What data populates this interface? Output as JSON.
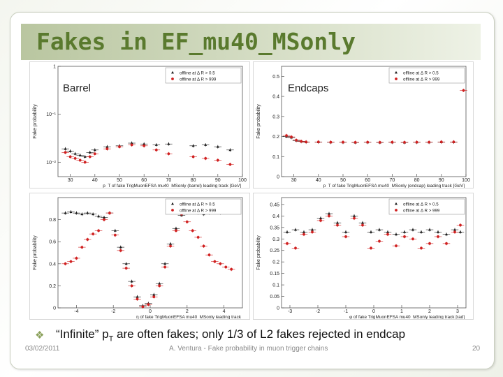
{
  "slide": {
    "title": "Fakes in EF_mu40_MSonly",
    "bullet_pre": "“Infinite” p",
    "bullet_sub": "T",
    "bullet_post": " are often fakes; only 1/3 of L2 fakes rejected in endcap",
    "footer_date": "03/02/2011",
    "footer_author": "A. Ventura - Fake probability in muon trigger chains",
    "page_number": "20"
  },
  "colors": {
    "title": "#5a7a2e",
    "band": "#b9c6a0",
    "series_a": "#1a1a1a",
    "series_b": "#d02020"
  },
  "chart_data": [
    {
      "type": "scatter",
      "panel_label": "Barrel",
      "xlabel": "p_T of fake TrigMuonEFSA mu40_MSonly (barrel) leading track [GeV]",
      "ylabel": "Fake probability",
      "xticks": [
        "30",
        "40",
        "50",
        "60",
        "70",
        "80",
        "90",
        "100"
      ],
      "yticks": [
        "1",
        "10⁻¹",
        "10⁻²"
      ],
      "xlim": [
        25,
        100
      ],
      "ylim": [
        0.005,
        1
      ],
      "ylog": true,
      "legend_position": "top-right",
      "series": [
        {
          "name": "offline at Δ R > 0.5",
          "marker": "triangle",
          "color": "#1a1a1a",
          "x": [
            28,
            30,
            32,
            34,
            36,
            38,
            40,
            45,
            50,
            55,
            60,
            65,
            70,
            80,
            85,
            90,
            95
          ],
          "y": [
            0.019,
            0.017,
            0.015,
            0.014,
            0.013,
            0.016,
            0.018,
            0.021,
            0.022,
            0.025,
            0.024,
            0.023,
            0.024,
            0.022,
            0.023,
            0.021,
            0.018
          ]
        },
        {
          "name": "offline at Δ R > 999",
          "marker": "circle",
          "color": "#d02020",
          "x": [
            28,
            30,
            32,
            34,
            36,
            38,
            40,
            45,
            50,
            55,
            60,
            65,
            70,
            80,
            85,
            90,
            95
          ],
          "y": [
            0.016,
            0.013,
            0.012,
            0.011,
            0.01,
            0.013,
            0.015,
            0.019,
            0.021,
            0.023,
            0.022,
            0.018,
            0.015,
            0.013,
            0.012,
            0.011,
            0.009
          ]
        }
      ]
    },
    {
      "type": "scatter",
      "panel_label": "Endcaps",
      "xlabel": "p_T of fake TrigMuonEFSA mu40_MSonly (endcap) leading track [GeV]",
      "ylabel": "Fake probability",
      "xticks": [
        "30",
        "40",
        "50",
        "60",
        "70",
        "80",
        "90",
        "100"
      ],
      "yticks": [
        "0",
        "0.1",
        "0.2",
        "0.3",
        "0.4",
        "0.5"
      ],
      "xlim": [
        25,
        100
      ],
      "ylim": [
        0,
        0.55
      ],
      "legend_position": "top-right",
      "series": [
        {
          "name": "offline at Δ R > 0.5",
          "marker": "triangle",
          "color": "#1a1a1a",
          "x": [
            27,
            29,
            31,
            33,
            35,
            40,
            45,
            50,
            55,
            60,
            65,
            70,
            75,
            80,
            85,
            90,
            95
          ],
          "y": [
            0.2,
            0.195,
            0.18,
            0.175,
            0.172,
            0.172,
            0.171,
            0.171,
            0.17,
            0.171,
            0.17,
            0.171,
            0.17,
            0.171,
            0.171,
            0.172,
            0.172
          ]
        },
        {
          "name": "offline at Δ R > 999",
          "marker": "circle",
          "color": "#d02020",
          "x": [
            27,
            29,
            31,
            33,
            35,
            40,
            45,
            50,
            55,
            60,
            65,
            70,
            75,
            80,
            85,
            90,
            95,
            99
          ],
          "y": [
            0.205,
            0.198,
            0.182,
            0.176,
            0.173,
            0.173,
            0.172,
            0.172,
            0.171,
            0.172,
            0.171,
            0.172,
            0.171,
            0.172,
            0.172,
            0.173,
            0.173,
            0.43
          ]
        }
      ]
    },
    {
      "type": "scatter",
      "xlabel": "η of fake TrigMuonEFSA mu40_MSonly leading track",
      "ylabel": "Fake probability",
      "xticks": [
        "-4",
        "-2",
        "0",
        "2",
        "4"
      ],
      "yticks": [
        "0",
        "0.2",
        "0.4",
        "0.6",
        "0.8"
      ],
      "xlim": [
        -5,
        5
      ],
      "ylim": [
        0,
        1.0
      ],
      "legend_position": "top-right",
      "series": [
        {
          "name": "offline at Δ R > 0.5",
          "marker": "triangle",
          "color": "#1a1a1a",
          "x": [
            -4.6,
            -4.3,
            -4.0,
            -3.7,
            -3.4,
            -3.1,
            -2.8,
            -2.5,
            -2.2,
            -1.9,
            -1.6,
            -1.3,
            -1.0,
            -0.7,
            -0.4,
            -0.1,
            0.2,
            0.5,
            0.8,
            1.1,
            1.4,
            1.7,
            2.0,
            2.3,
            2.6,
            2.9,
            3.2,
            3.5,
            3.8,
            4.1,
            4.4
          ],
          "y": [
            0.86,
            0.87,
            0.86,
            0.85,
            0.86,
            0.85,
            0.83,
            0.82,
            0.86,
            0.7,
            0.55,
            0.4,
            0.24,
            0.1,
            0.02,
            0.04,
            0.12,
            0.22,
            0.4,
            0.58,
            0.72,
            0.84,
            0.86,
            0.87,
            0.86,
            0.85,
            0.86,
            0.87,
            0.86,
            0.88,
            0.89
          ]
        },
        {
          "name": "offline at Δ R > 999",
          "marker": "circle",
          "color": "#d02020",
          "x": [
            -4.6,
            -4.3,
            -4.0,
            -3.7,
            -3.4,
            -3.1,
            -2.8,
            -2.5,
            -2.2,
            -1.9,
            -1.6,
            -1.3,
            -1.0,
            -0.7,
            -0.4,
            -0.1,
            0.2,
            0.5,
            0.8,
            1.1,
            1.4,
            1.7,
            2.0,
            2.3,
            2.6,
            2.9,
            3.2,
            3.5,
            3.8,
            4.1,
            4.4
          ],
          "y": [
            0.4,
            0.42,
            0.45,
            0.55,
            0.62,
            0.67,
            0.7,
            0.8,
            0.86,
            0.66,
            0.52,
            0.36,
            0.2,
            0.08,
            0.01,
            0.03,
            0.1,
            0.2,
            0.37,
            0.56,
            0.7,
            0.85,
            0.78,
            0.7,
            0.64,
            0.56,
            0.48,
            0.42,
            0.4,
            0.37,
            0.35
          ]
        }
      ]
    },
    {
      "type": "scatter",
      "xlabel": "φ of fake TrigMuonEFSA mu40_MSonly leading track [rad]",
      "ylabel": "Fake probability",
      "xticks": [
        "-3",
        "-2",
        "-1",
        "0",
        "1",
        "2",
        "3"
      ],
      "yticks": [
        "0",
        "0.05",
        "0.1",
        "0.15",
        "0.2",
        "0.25",
        "0.3",
        "0.35",
        "0.4",
        "0.45"
      ],
      "xlim": [
        -3.3,
        3.3
      ],
      "ylim": [
        0,
        0.48
      ],
      "legend_position": "top-right",
      "series": [
        {
          "name": "offline at Δ R > 0.5",
          "marker": "triangle",
          "color": "#1a1a1a",
          "x": [
            -3.1,
            -2.8,
            -2.5,
            -2.2,
            -1.9,
            -1.6,
            -1.3,
            -1.0,
            -0.7,
            -0.4,
            -0.1,
            0.2,
            0.5,
            0.8,
            1.1,
            1.4,
            1.7,
            2.0,
            2.3,
            2.6,
            2.9,
            3.1
          ],
          "y": [
            0.33,
            0.34,
            0.33,
            0.34,
            0.39,
            0.41,
            0.37,
            0.33,
            0.4,
            0.37,
            0.33,
            0.34,
            0.33,
            0.32,
            0.33,
            0.34,
            0.33,
            0.34,
            0.33,
            0.32,
            0.34,
            0.33
          ]
        },
        {
          "name": "offline at Δ R > 999",
          "marker": "circle",
          "color": "#d02020",
          "x": [
            -3.1,
            -2.8,
            -2.5,
            -2.2,
            -1.9,
            -1.6,
            -1.3,
            -1.0,
            -0.7,
            -0.4,
            -0.1,
            0.2,
            0.5,
            0.8,
            1.1,
            1.4,
            1.7,
            2.0,
            2.3,
            2.6,
            2.9,
            3.1
          ],
          "y": [
            0.28,
            0.26,
            0.32,
            0.33,
            0.38,
            0.4,
            0.36,
            0.31,
            0.39,
            0.36,
            0.26,
            0.29,
            0.32,
            0.27,
            0.31,
            0.3,
            0.26,
            0.28,
            0.31,
            0.28,
            0.33,
            0.36
          ]
        }
      ]
    }
  ]
}
